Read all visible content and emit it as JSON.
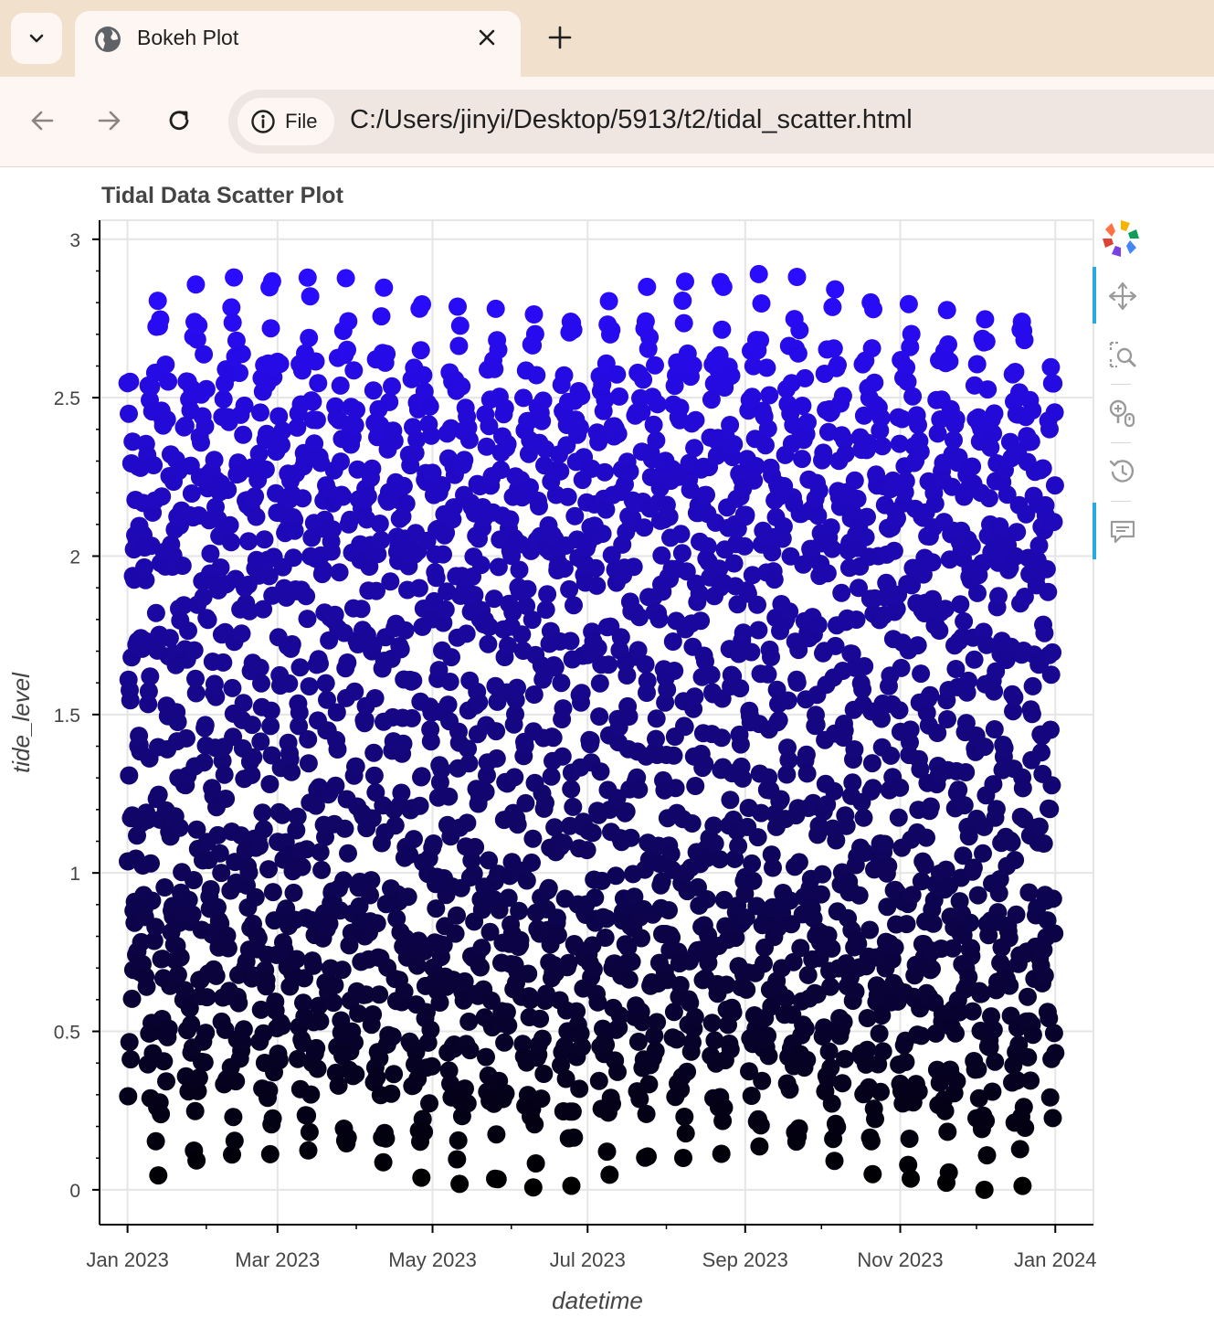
{
  "browser": {
    "tab_title": "Bokeh Plot",
    "url_chip_label": "File",
    "url": "C:/Users/jinyi/Desktop/5913/t2/tidal_scatter.html"
  },
  "icons": {
    "tab_menu": "chevron-down-icon",
    "favicon": "globe-icon",
    "close": "close-icon",
    "new_tab": "plus-icon",
    "back": "back-arrow-icon",
    "forward": "forward-arrow-icon",
    "reload": "reload-icon",
    "info": "info-icon",
    "bokeh_logo": "bokeh-logo-icon",
    "tools": [
      "pan-icon",
      "box-zoom-icon",
      "wheel-zoom-icon",
      "reset-icon",
      "hover-icon"
    ]
  },
  "colors": {
    "low": "#000000",
    "high": "#2a0cff",
    "grid": "#e5e5e5",
    "axis": "#000000",
    "tool_active": "#26aae1"
  },
  "chart_data": {
    "type": "scatter",
    "title": "Tidal Data Scatter Plot",
    "xlabel": "datetime",
    "ylabel": "tide_level",
    "x_ticks": [
      "Jan 2023",
      "Mar 2023",
      "May 2023",
      "Jul 2023",
      "Sep 2023",
      "Nov 2023",
      "Jan 2024"
    ],
    "y_ticks": [
      "0",
      "0.5",
      "1",
      "1.5",
      "2",
      "2.5",
      "3"
    ],
    "xlim": [
      "2022-12-21",
      "2024-01-16"
    ],
    "ylim": [
      -0.11,
      3.06
    ],
    "grid": true,
    "legend": "none",
    "color_mapping": "tide_level mapped from black (low) to blue (high)",
    "sampling": "3-hourly readings through 2023",
    "series": [
      {
        "x_start": "2023-01-01",
        "x_end": "2024-01-01",
        "y_min": 0.0,
        "y_max": 2.89
      }
    ]
  }
}
